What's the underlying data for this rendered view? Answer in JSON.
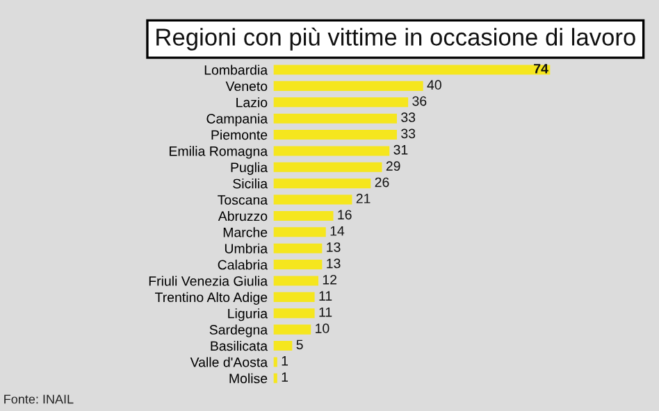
{
  "chart_data": {
    "type": "bar",
    "orientation": "horizontal",
    "title": "Regioni con più vittime in occasione di lavoro",
    "categories": [
      "Lombardia",
      "Veneto",
      "Lazio",
      "Campania",
      "Piemonte",
      "Emilia Romagna",
      "Puglia",
      "Sicilia",
      "Toscana",
      "Abruzzo",
      "Marche",
      "Umbria",
      "Calabria",
      "Friuli Venezia Giulia",
      "Trentino Alto Adige",
      "Liguria",
      "Sardegna",
      "Basilicata",
      "Valle d'Aosta",
      "Molise"
    ],
    "values": [
      74,
      40,
      36,
      33,
      33,
      31,
      29,
      26,
      21,
      16,
      14,
      13,
      13,
      12,
      11,
      11,
      10,
      5,
      1,
      1
    ],
    "color": "#f5e61e",
    "data_labels": true,
    "tick_labels": "y",
    "grid": false,
    "legend": false,
    "annotations": [
      "Fonte: INAIL"
    ]
  }
}
